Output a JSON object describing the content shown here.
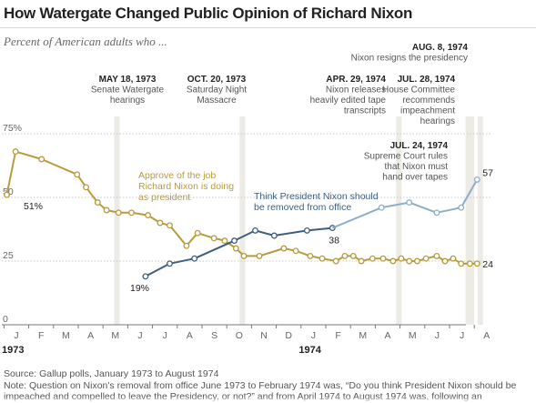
{
  "title": "How Watergate Changed Public Opinion of Richard Nixon",
  "subtitle": "Percent of American adults who ...",
  "source": "Source: Gallup polls, January 1973 to August 1974",
  "note_line1": "Note: Question on Nixon's removal from office June 1973 to February 1974 was, “Do you think President Nixon should be",
  "note_line2": "impeached and compelled to leave the Presidency, or not?” and from April 1974 to August 1974 was, following an",
  "colors": {
    "approve": "#b99a3c",
    "remove": "#3f5f7e",
    "remove_light": "#8fadc4",
    "event_band": "#ecebe6",
    "grid": "#c8c8c8"
  },
  "chart_data": {
    "type": "line",
    "xlabel": "",
    "ylabel": "",
    "x_range": [
      "1973-01",
      "1974-08"
    ],
    "ylim": [
      0,
      75
    ],
    "y_ticks": [
      {
        "value": 75,
        "label": "75%"
      },
      {
        "value": 50,
        "label": "50"
      },
      {
        "value": 25,
        "label": "25"
      },
      {
        "value": 0,
        "label": "0"
      }
    ],
    "grid": true,
    "x_ticks": [
      {
        "date": "1973-01",
        "label": "J"
      },
      {
        "date": "1973-02",
        "label": "F"
      },
      {
        "date": "1973-03",
        "label": "M"
      },
      {
        "date": "1973-04",
        "label": "A"
      },
      {
        "date": "1973-05",
        "label": "M"
      },
      {
        "date": "1973-06",
        "label": "J"
      },
      {
        "date": "1973-07",
        "label": "J"
      },
      {
        "date": "1973-08",
        "label": "A"
      },
      {
        "date": "1973-09",
        "label": "S"
      },
      {
        "date": "1973-10",
        "label": "O"
      },
      {
        "date": "1973-11",
        "label": "N"
      },
      {
        "date": "1973-12",
        "label": "D"
      },
      {
        "date": "1974-01",
        "label": "J"
      },
      {
        "date": "1974-02",
        "label": "F"
      },
      {
        "date": "1974-03",
        "label": "M"
      },
      {
        "date": "1974-04",
        "label": "A"
      },
      {
        "date": "1974-05",
        "label": "M"
      },
      {
        "date": "1974-06",
        "label": "J"
      },
      {
        "date": "1974-07",
        "label": "J"
      },
      {
        "date": "1974-08",
        "label": "A"
      }
    ],
    "year_labels": [
      {
        "date": "1973-01",
        "label": "1973"
      },
      {
        "date": "1974-01",
        "label": "1974"
      }
    ],
    "series": [
      {
        "key": "approve",
        "label_lines": [
          "Approve of the job",
          "Richard Nixon is doing",
          "as president"
        ],
        "points": [
          [
            "1973-01-04",
            51
          ],
          [
            "1973-01-15",
            68
          ],
          [
            "1973-02-15",
            65
          ],
          [
            "1973-03-30",
            59
          ],
          [
            "1973-04-10",
            54
          ],
          [
            "1973-04-24",
            48
          ],
          [
            "1973-05-05",
            45
          ],
          [
            "1973-05-20",
            44
          ],
          [
            "1973-06-05",
            44
          ],
          [
            "1973-06-25",
            43
          ],
          [
            "1973-07-10",
            40
          ],
          [
            "1973-07-22",
            39
          ],
          [
            "1973-08-12",
            31
          ],
          [
            "1973-08-26",
            36
          ],
          [
            "1973-09-15",
            34
          ],
          [
            "1973-09-28",
            33
          ],
          [
            "1973-10-12",
            30
          ],
          [
            "1973-10-22",
            27
          ],
          [
            "1973-11-10",
            27
          ],
          [
            "1973-12-10",
            30
          ],
          [
            "1973-12-25",
            29
          ],
          [
            "1974-01-12",
            27
          ],
          [
            "1974-01-27",
            26
          ],
          [
            "1974-02-12",
            25
          ],
          [
            "1974-02-22",
            27
          ],
          [
            "1974-03-04",
            27
          ],
          [
            "1974-03-14",
            25
          ],
          [
            "1974-03-28",
            26
          ],
          [
            "1974-04-10",
            26
          ],
          [
            "1974-04-22",
            25
          ],
          [
            "1974-05-02",
            26
          ],
          [
            "1974-05-12",
            25
          ],
          [
            "1974-05-22",
            25
          ],
          [
            "1974-06-02",
            26
          ],
          [
            "1974-06-15",
            27
          ],
          [
            "1974-06-25",
            25
          ],
          [
            "1974-07-05",
            26
          ],
          [
            "1974-07-15",
            24
          ],
          [
            "1974-07-26",
            24
          ],
          [
            "1974-08-04",
            24
          ]
        ],
        "end_label": "24"
      },
      {
        "key": "remove",
        "label_lines": [
          "Think President Nixon should",
          "be removed from office"
        ],
        "points": [
          [
            "1973-06-22",
            19
          ],
          [
            "1973-07-22",
            24
          ],
          [
            "1973-08-22",
            26
          ],
          [
            "1973-10-10",
            33
          ],
          [
            "1973-11-05",
            37
          ],
          [
            "1973-11-28",
            35
          ],
          [
            "1974-01-08",
            37
          ],
          [
            "1974-02-08",
            38
          ]
        ],
        "end_label": "38"
      },
      {
        "key": "remove_late",
        "label_lines": [],
        "points": [
          [
            "1974-02-08",
            38
          ],
          [
            "1974-04-08",
            46
          ],
          [
            "1974-05-12",
            48
          ],
          [
            "1974-06-15",
            44
          ],
          [
            "1974-07-15",
            46
          ],
          [
            "1974-08-04",
            57
          ]
        ],
        "end_label": "57"
      }
    ],
    "start_labels": [
      {
        "series": "approve",
        "text": "51%"
      },
      {
        "series": "remove",
        "text": "19%"
      }
    ],
    "events": [
      {
        "date": "1973-05-18",
        "date_label": "MAY 18, 1973",
        "lines": [
          "Senate Watergate",
          "hearings"
        ]
      },
      {
        "date": "1973-10-20",
        "date_label": "OCT. 20, 1973",
        "lines": [
          "Saturday Night",
          "Massacre"
        ]
      },
      {
        "date": "1974-04-29",
        "date_label": "APR. 29, 1974",
        "lines": [
          "Nixon releases",
          "heavily edited tape",
          "transcripts"
        ]
      },
      {
        "date": "1974-07-24",
        "date_label": "JUL. 24, 1974",
        "lines": [
          "Supreme Court rules",
          "that Nixon must",
          "hand over tapes"
        ]
      },
      {
        "date": "1974-07-28",
        "date_label": "JUL. 28, 1974",
        "lines": [
          "House Committee",
          "recommends",
          "impeachment",
          "hearings"
        ]
      },
      {
        "date": "1974-08-08",
        "date_label": "AUG. 8, 1974",
        "lines": [
          "Nixon resigns the presidency"
        ]
      }
    ]
  }
}
